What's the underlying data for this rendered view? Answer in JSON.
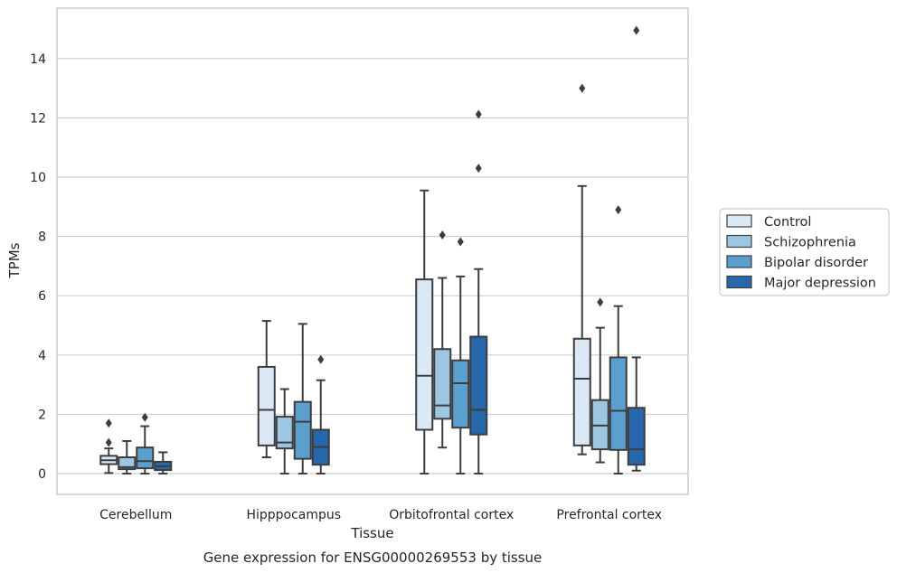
{
  "caption": "Gene expression for ENSG00000269553 by tissue",
  "chart_data": {
    "type": "box",
    "title": "",
    "xlabel": "Tissue",
    "ylabel": "TPMs",
    "ylim": [
      -0.7,
      15.7
    ],
    "yticks": [
      0,
      2,
      4,
      6,
      8,
      10,
      12,
      14
    ],
    "grid": "horizontal",
    "legend_position": "right",
    "categories": [
      "Cerebellum",
      "Hipppocampus",
      "Orbitofrontal cortex",
      "Prefrontal cortex"
    ],
    "series": [
      {
        "name": "Control",
        "color": "#dbe8f5",
        "boxes": [
          {
            "whislo": 0.02,
            "q1": 0.32,
            "med": 0.45,
            "q3": 0.6,
            "whishi": 0.85,
            "fliers": [
              1.05,
              1.7
            ]
          },
          {
            "whislo": 0.55,
            "q1": 0.95,
            "med": 2.15,
            "q3": 3.6,
            "whishi": 5.15,
            "fliers": []
          },
          {
            "whislo": 0.0,
            "q1": 1.48,
            "med": 3.3,
            "q3": 6.55,
            "whishi": 9.55,
            "fliers": []
          },
          {
            "whislo": 0.65,
            "q1": 0.95,
            "med": 3.2,
            "q3": 4.55,
            "whishi": 9.7,
            "fliers": [
              13.0
            ]
          }
        ]
      },
      {
        "name": "Schizophrenia",
        "color": "#9dc6e0",
        "boxes": [
          {
            "whislo": 0.0,
            "q1": 0.15,
            "med": 0.22,
            "q3": 0.55,
            "whishi": 1.1,
            "fliers": []
          },
          {
            "whislo": 0.0,
            "q1": 0.85,
            "med": 1.05,
            "q3": 1.92,
            "whishi": 2.85,
            "fliers": []
          },
          {
            "whislo": 0.88,
            "q1": 1.85,
            "med": 2.3,
            "q3": 4.2,
            "whishi": 6.6,
            "fliers": [
              8.05
            ]
          },
          {
            "whislo": 0.38,
            "q1": 0.82,
            "med": 1.62,
            "q3": 2.48,
            "whishi": 4.92,
            "fliers": [
              5.78
            ]
          }
        ]
      },
      {
        "name": "Bipolar disorder",
        "color": "#5b9fcf",
        "boxes": [
          {
            "whislo": 0.0,
            "q1": 0.18,
            "med": 0.42,
            "q3": 0.88,
            "whishi": 1.6,
            "fliers": [
              1.9
            ]
          },
          {
            "whislo": 0.0,
            "q1": 0.5,
            "med": 1.75,
            "q3": 2.42,
            "whishi": 5.05,
            "fliers": []
          },
          {
            "whislo": 0.0,
            "q1": 1.55,
            "med": 3.05,
            "q3": 3.82,
            "whishi": 6.65,
            "fliers": [
              7.82
            ]
          },
          {
            "whislo": 0.0,
            "q1": 0.8,
            "med": 2.12,
            "q3": 3.92,
            "whishi": 5.65,
            "fliers": [
              8.9
            ]
          }
        ]
      },
      {
        "name": "Major depression",
        "color": "#2767ac",
        "boxes": [
          {
            "whislo": 0.0,
            "q1": 0.12,
            "med": 0.25,
            "q3": 0.4,
            "whishi": 0.72,
            "fliers": []
          },
          {
            "whislo": 0.0,
            "q1": 0.3,
            "med": 0.9,
            "q3": 1.48,
            "whishi": 3.15,
            "fliers": [
              3.85
            ]
          },
          {
            "whislo": 0.0,
            "q1": 1.32,
            "med": 2.15,
            "q3": 4.62,
            "whishi": 6.9,
            "fliers": [
              10.3,
              12.12
            ]
          },
          {
            "whislo": 0.1,
            "q1": 0.3,
            "med": 0.82,
            "q3": 2.22,
            "whishi": 3.92,
            "fliers": [
              14.95
            ]
          }
        ]
      }
    ]
  }
}
